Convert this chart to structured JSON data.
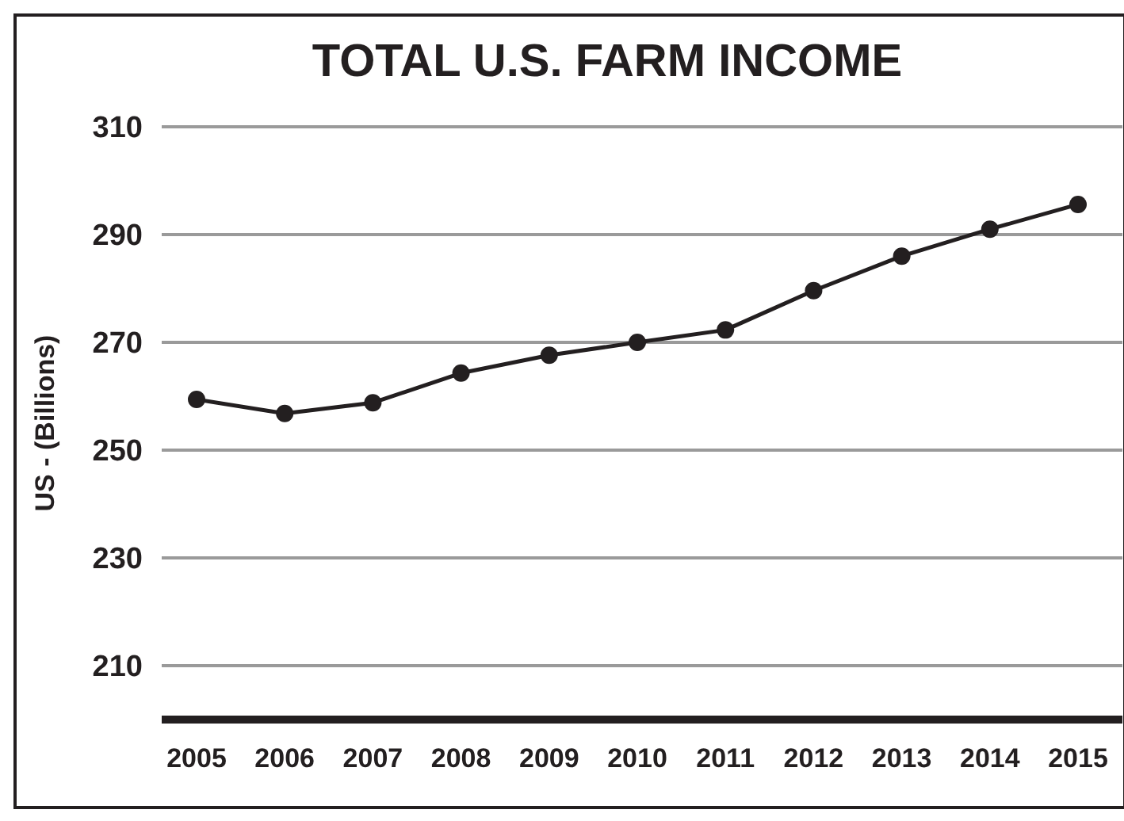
{
  "chart_data": {
    "type": "line",
    "title": "TOTAL U.S. FARM INCOME",
    "ylabel": "US - (Billions)",
    "categories": [
      "2005",
      "2006",
      "2007",
      "2008",
      "2009",
      "2010",
      "2011",
      "2012",
      "2013",
      "2014",
      "2015"
    ],
    "series": [
      {
        "color": "#231f20",
        "values": [
          259.4,
          256.8,
          258.8,
          264.3,
          267.6,
          270,
          272.3,
          279.6,
          286,
          291,
          295.6
        ]
      }
    ],
    "ylim": [
      200,
      310
    ],
    "yticks": [
      210,
      230,
      250,
      270,
      290,
      310
    ],
    "grid": "y",
    "marker": "circle",
    "line_style": "solid"
  }
}
